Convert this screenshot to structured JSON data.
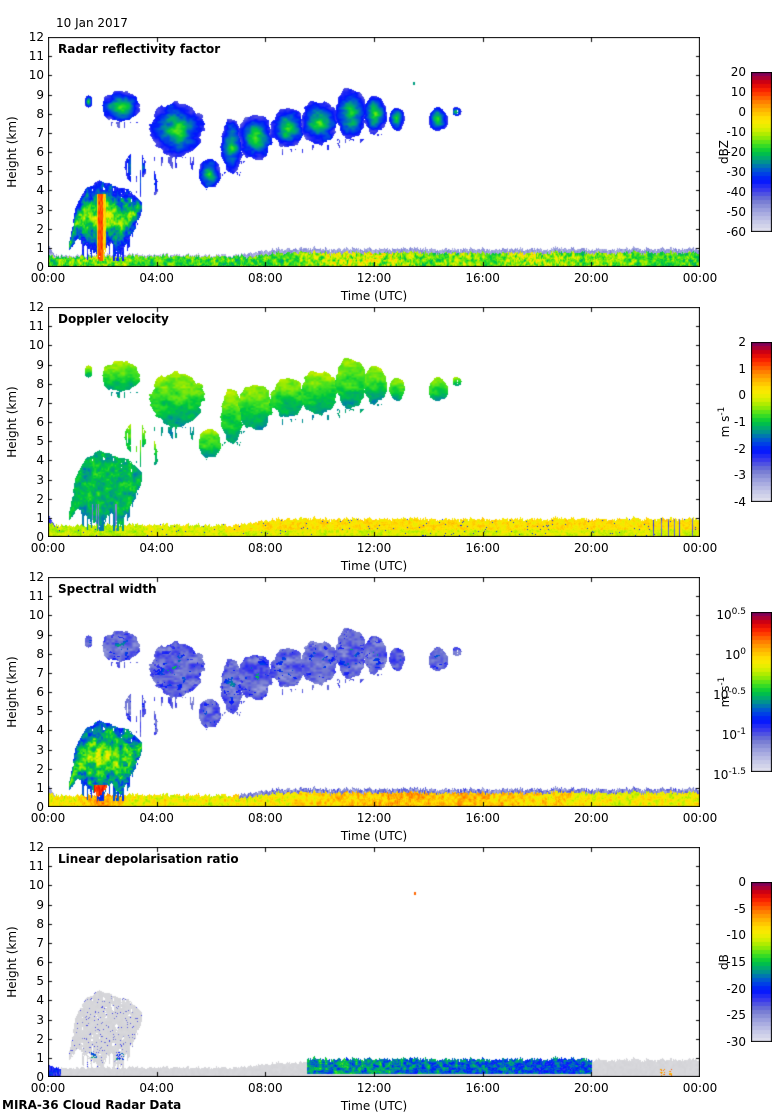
{
  "figure": {
    "date": "10 Jan 2017",
    "footer": "MIRA-36 Cloud Radar Data"
  },
  "chart_data": {
    "type": "heatmap",
    "description": "24-hour time-height cloud radar quicklook, four stacked panels sharing time/height axes",
    "x": {
      "label": "Time (UTC)",
      "range_hours": [
        0,
        24
      ],
      "tick_hours": [
        0,
        4,
        8,
        12,
        16,
        20,
        24
      ],
      "tick_labels": [
        "00:00",
        "04:00",
        "08:00",
        "12:00",
        "16:00",
        "20:00",
        "00:00"
      ]
    },
    "y": {
      "label": "Height (km)",
      "range_km": [
        0,
        12
      ],
      "tick_step_km": 1,
      "tick_labels": [
        "0",
        "1",
        "2",
        "3",
        "4",
        "5",
        "6",
        "7",
        "8",
        "9",
        "10",
        "11",
        "12"
      ]
    },
    "panels": [
      {
        "id": "reflectivity",
        "title": "Radar reflectivity factor",
        "colorbar": {
          "unit": {
            "text": "dBZ"
          },
          "min": -60,
          "max": 20,
          "ticks": [
            {
              "text": "20",
              "value": 20
            },
            {
              "text": "10",
              "value": 10
            },
            {
              "text": "0",
              "value": 0
            },
            {
              "text": "-10",
              "value": -10
            },
            {
              "text": "-20",
              "value": -20
            },
            {
              "text": "-30",
              "value": -30
            },
            {
              "text": "-40",
              "value": -40
            },
            {
              "text": "-50",
              "value": -50
            },
            {
              "text": "-60",
              "value": -60
            }
          ]
        }
      },
      {
        "id": "velocity",
        "title": "Doppler velocity",
        "colorbar": {
          "unit": {
            "text": "m s",
            "sup": "-1"
          },
          "min": -4,
          "max": 2,
          "ticks": [
            {
              "text": "2",
              "value": 2
            },
            {
              "text": "1",
              "value": 1
            },
            {
              "text": "0",
              "value": 0
            },
            {
              "text": "-1",
              "value": -1
            },
            {
              "text": "-2",
              "value": -2
            },
            {
              "text": "-3",
              "value": -3
            },
            {
              "text": "-4",
              "value": -4
            }
          ]
        }
      },
      {
        "id": "spectral-width",
        "title": "Spectral width",
        "colorbar": {
          "unit": {
            "text": "m s",
            "sup": "-1"
          },
          "min": -1.5,
          "max": 0.5,
          "scale": "log10",
          "ticks": [
            {
              "text": "10",
              "sup": "0.5",
              "value": 0.5
            },
            {
              "text": "10",
              "sup": "0",
              "value": 0
            },
            {
              "text": "10",
              "sup": "-0.5",
              "value": -0.5
            },
            {
              "text": "10",
              "sup": "-1",
              "value": -1
            },
            {
              "text": "10",
              "sup": "-1.5",
              "value": -1.5
            }
          ]
        }
      },
      {
        "id": "ldr",
        "title": "Linear depolarisation ratio",
        "colorbar": {
          "unit": {
            "text": "dB"
          },
          "min": -30,
          "max": 0,
          "ticks": [
            {
              "text": "0",
              "value": 0
            },
            {
              "text": "-5",
              "value": -5
            },
            {
              "text": "-10",
              "value": -10
            },
            {
              "text": "-15",
              "value": -15
            },
            {
              "text": "-20",
              "value": -20
            },
            {
              "text": "-25",
              "value": -25
            },
            {
              "text": "-30",
              "value": -30
            }
          ]
        }
      }
    ],
    "colormap_stops": [
      [
        0.0,
        226,
        226,
        238
      ],
      [
        0.06,
        200,
        202,
        232
      ],
      [
        0.13,
        160,
        164,
        222
      ],
      [
        0.2,
        112,
        118,
        210
      ],
      [
        0.26,
        60,
        60,
        235
      ],
      [
        0.32,
        0,
        20,
        255
      ],
      [
        0.38,
        0,
        80,
        220
      ],
      [
        0.44,
        0,
        150,
        140
      ],
      [
        0.5,
        0,
        200,
        60
      ],
      [
        0.55,
        70,
        225,
        30
      ],
      [
        0.6,
        160,
        235,
        0
      ],
      [
        0.65,
        225,
        240,
        0
      ],
      [
        0.7,
        255,
        230,
        0
      ],
      [
        0.76,
        255,
        180,
        0
      ],
      [
        0.82,
        255,
        120,
        0
      ],
      [
        0.88,
        255,
        40,
        0
      ],
      [
        0.93,
        215,
        0,
        10
      ],
      [
        0.97,
        160,
        0,
        60
      ],
      [
        1.0,
        115,
        0,
        105
      ]
    ],
    "gray_no_ldr": "#d6d6da",
    "features": {
      "surface_layer": {
        "t_hours": [
          0,
          24
        ],
        "top_km_early": 0.62,
        "top_km_late": 0.95,
        "transition_hours": [
          7,
          8.5
        ],
        "reflectivity_dBZ": [
          -45,
          -5
        ],
        "velocity_ms": [
          -1.4,
          0.4
        ],
        "width_log10": [
          -1.15,
          0.3
        ],
        "warm_windows_hours": [
          [
            0.3,
            3.6,
            0.5
          ],
          [
            8.8,
            14.2,
            1.0
          ],
          [
            14.2,
            16.4,
            0.55
          ],
          [
            16.4,
            19.6,
            0.95
          ],
          [
            19.6,
            21.8,
            0.5
          ]
        ],
        "ldr_colored_hours": [
          9.5,
          20
        ],
        "ldr_dB": [
          -30,
          -14
        ],
        "ldr_blue_patch_hours": [
          0,
          0.45
        ]
      },
      "low_cloud": {
        "t_hours": [
          0.75,
          3.45
        ],
        "top_profile": [
          [
            0.75,
            1.2
          ],
          [
            1.0,
            3.1
          ],
          [
            1.4,
            4.1
          ],
          [
            1.9,
            4.5
          ],
          [
            2.4,
            4.25
          ],
          [
            2.9,
            4.1
          ],
          [
            3.2,
            3.7
          ],
          [
            3.45,
            3.3
          ]
        ],
        "bottom_profile": [
          [
            0.75,
            0.9
          ],
          [
            1.1,
            1.5
          ],
          [
            1.5,
            0.9
          ],
          [
            1.9,
            0.55
          ],
          [
            2.3,
            1.3
          ],
          [
            2.65,
            0.6
          ],
          [
            3.0,
            1.5
          ],
          [
            3.45,
            2.9
          ]
        ],
        "reflectivity_dBZ": [
          -40,
          10
        ],
        "rain_core_hours": [
          1.8,
          2.08
        ],
        "velocity_ms": [
          -2.9,
          -0.6
        ],
        "downdraft_hours": [
          [
            1.6,
            1.85
          ],
          [
            2.45,
            2.9
          ]
        ],
        "width_log10": [
          -0.9,
          0.35
        ],
        "width_hot_base_hours": [
          1.68,
          2.18
        ],
        "ldr_dot_boxes": [
          [
            1.55,
            1.8,
            1.0,
            1.3
          ],
          [
            2.5,
            2.78,
            0.9,
            1.3
          ]
        ]
      },
      "elevated_clouds": {
        "reflectivity_dBZ": [
          -42,
          -16
        ],
        "velocity_ms": [
          -1.35,
          -0.2
        ],
        "width_log10": [
          -1.25,
          -0.5
        ],
        "blobs": [
          {
            "t": [
              1.33,
              1.62
            ],
            "h": [
              8.3,
              8.95
            ],
            "d": 1,
            "s": 0
          },
          {
            "t": [
              1.95,
              3.38
            ],
            "h": [
              7.55,
              9.15
            ],
            "d": 1,
            "s": 0.45
          },
          {
            "t": [
              2.8,
              3.6
            ],
            "h": [
              4.3,
              6.05
            ],
            "d": 0.4,
            "s": 0
          },
          {
            "t": [
              3.2,
              4.05
            ],
            "h": [
              3.55,
              5.15
            ],
            "d": 0.35,
            "s": 0
          },
          {
            "t": [
              3.72,
              5.75
            ],
            "h": [
              5.75,
              8.6
            ],
            "d": 1,
            "s": 0.4
          },
          {
            "t": [
              5.5,
              6.35
            ],
            "h": [
              4.05,
              5.65
            ],
            "d": 1,
            "s": 0.15
          },
          {
            "t": [
              6.35,
              7.15
            ],
            "h": [
              4.95,
              7.7
            ],
            "d": 1,
            "s": 0.2
          },
          {
            "t": [
              7.0,
              8.25
            ],
            "h": [
              5.55,
              7.95
            ],
            "d": 1,
            "s": 0.3
          },
          {
            "t": [
              8.15,
              9.45
            ],
            "h": [
              6.15,
              8.35
            ],
            "d": 1,
            "s": 0.3
          },
          {
            "t": [
              9.3,
              10.65
            ],
            "h": [
              6.35,
              8.75
            ],
            "d": 1,
            "s": 0.3
          },
          {
            "t": [
              10.55,
              11.7
            ],
            "h": [
              6.7,
              9.35
            ],
            "d": 1,
            "s": 0.3
          },
          {
            "t": [
              11.6,
              12.45
            ],
            "h": [
              6.95,
              9.0
            ],
            "d": 1,
            "s": 0.2
          },
          {
            "t": [
              12.55,
              13.1
            ],
            "h": [
              7.05,
              8.35
            ],
            "d": 1,
            "s": 0
          },
          {
            "t": [
              14.0,
              14.7
            ],
            "h": [
              7.1,
              8.35
            ],
            "d": 1,
            "s": 0
          },
          {
            "t": [
              14.85,
              15.2
            ],
            "h": [
              7.85,
              8.35
            ],
            "d": 0.8,
            "s": 0
          }
        ]
      },
      "specks": [
        {
          "panel": "reflectivity",
          "t": 13.45,
          "h": 9.63,
          "value": -24
        },
        {
          "panel": "ldr",
          "t": 13.47,
          "h": 9.66,
          "value": -5
        }
      ]
    }
  },
  "layout_note": "panels stacked vertically; colorbar right of each panel"
}
